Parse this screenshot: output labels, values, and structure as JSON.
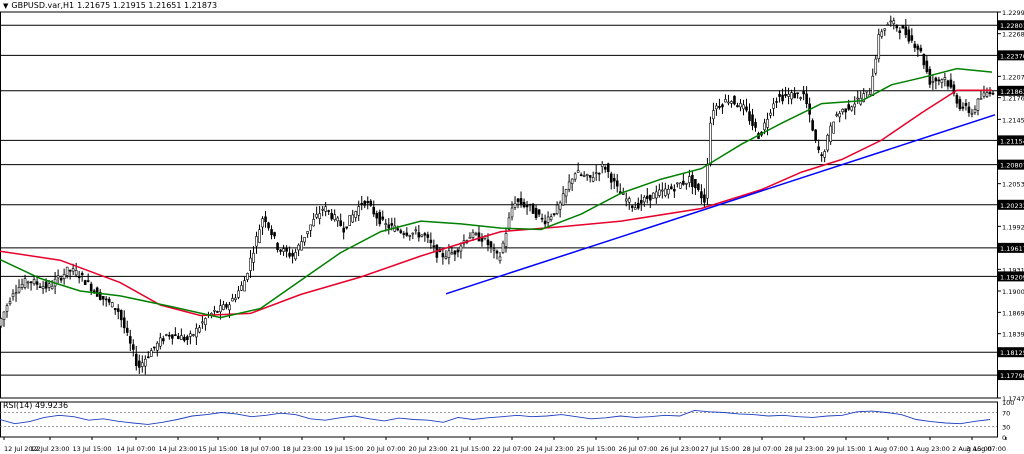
{
  "header": {
    "dropdown_icon": "triangle-down-icon",
    "symbol": "GBPUSD.var,H1",
    "ohlc": "1.21675 1.21915 1.21651 1.21873"
  },
  "rsi_header": {
    "label": "RSI(14) 49.9236"
  },
  "chart_data": [
    {
      "type": "candlestick",
      "symbol": "GBPUSD",
      "timeframe": "H1",
      "x_ticks": [
        "12 Jul 2022",
        "12 Jul 23:00",
        "13 Jul 15:00",
        "14 Jul 07:00",
        "14 Jul 23:00",
        "15 Jul 15:00",
        "18 Jul 07:00",
        "18 Jul 23:00",
        "19 Jul 15:00",
        "20 Jul 07:00",
        "20 Jul 23:00",
        "21 Jul 15:00",
        "22 Jul 07:00",
        "24 Jul 23:00",
        "25 Jul 15:00",
        "26 Jul 07:00",
        "26 Jul 23:00",
        "27 Jul 15:00",
        "28 Jul 07:00",
        "28 Jul 23:00",
        "29 Jul 15:00",
        "1 Aug 07:00",
        "1 Aug 23:00",
        "2 Aug 15:00",
        "3 Aug 07:00"
      ],
      "y_ticks": [
        1.2299,
        1.2268,
        1.2207,
        1.21765,
        1.21455,
        1.20535,
        1.19925,
        1.1931,
        1.19,
        1.18695,
        1.1839,
        1.1747
      ],
      "ylim": [
        1.1747,
        1.2299
      ],
      "levels": [
        1.22801,
        1.2237,
        1.21863,
        1.21154,
        1.20807,
        1.20233,
        1.19617,
        1.19209,
        1.18125,
        1.17798
      ],
      "trendline": {
        "color": "#0000ff",
        "start": {
          "x": "20 Jul 23:00",
          "y": 1.1896
        },
        "end": {
          "x": "3 Aug 07:00",
          "y": 1.2152
        }
      },
      "moving_averages": [
        {
          "color": "#e8002a",
          "points": [
            [
              0,
              1.1957
            ],
            [
              60,
              1.1944
            ],
            [
              120,
              1.1912
            ],
            [
              160,
              1.188
            ],
            [
              200,
              1.1865
            ],
            [
              250,
              1.1868
            ],
            [
              300,
              1.1895
            ],
            [
              360,
              1.192
            ],
            [
              420,
              1.195
            ],
            [
              460,
              1.1968
            ],
            [
              500,
              1.1985
            ],
            [
              560,
              1.1992
            ],
            [
              620,
              1.2
            ],
            [
              700,
              1.2018
            ],
            [
              760,
              1.2045
            ],
            [
              800,
              1.207
            ],
            [
              840,
              1.2088
            ],
            [
              880,
              1.2116
            ],
            [
              920,
              1.2155
            ],
            [
              955,
              1.2187
            ],
            [
              990,
              1.2187
            ]
          ]
        },
        {
          "color": "#008000",
          "points": [
            [
              0,
              1.1945
            ],
            [
              40,
              1.1918
            ],
            [
              80,
              1.19
            ],
            [
              120,
              1.1893
            ],
            [
              170,
              1.1878
            ],
            [
              220,
              1.1862
            ],
            [
              260,
              1.1875
            ],
            [
              300,
              1.1915
            ],
            [
              340,
              1.1955
            ],
            [
              380,
              1.1985
            ],
            [
              420,
              1.2
            ],
            [
              460,
              1.1996
            ],
            [
              500,
              1.199
            ],
            [
              540,
              1.1988
            ],
            [
              580,
              1.201
            ],
            [
              620,
              1.204
            ],
            [
              660,
              1.206
            ],
            [
              700,
              1.2075
            ],
            [
              740,
              1.211
            ],
            [
              780,
              1.214
            ],
            [
              820,
              1.2168
            ],
            [
              860,
              1.2172
            ],
            [
              890,
              1.2195
            ],
            [
              920,
              1.2205
            ],
            [
              955,
              1.2218
            ],
            [
              990,
              1.2213
            ]
          ]
        }
      ],
      "price_path": [
        [
          0,
          1.185
        ],
        [
          15,
          1.19
        ],
        [
          30,
          1.1915
        ],
        [
          50,
          1.1905
        ],
        [
          70,
          1.193
        ],
        [
          80,
          1.1925
        ],
        [
          100,
          1.1895
        ],
        [
          120,
          1.1872
        ],
        [
          140,
          1.179
        ],
        [
          150,
          1.181
        ],
        [
          170,
          1.184
        ],
        [
          190,
          1.183
        ],
        [
          210,
          1.1865
        ],
        [
          230,
          1.188
        ],
        [
          245,
          1.191
        ],
        [
          265,
          1.201
        ],
        [
          280,
          1.196
        ],
        [
          295,
          1.195
        ],
        [
          310,
          1.199
        ],
        [
          325,
          1.202
        ],
        [
          345,
          1.199
        ],
        [
          365,
          1.203
        ],
        [
          385,
          1.1995
        ],
        [
          405,
          1.1985
        ],
        [
          425,
          1.198
        ],
        [
          440,
          1.195
        ],
        [
          455,
          1.1955
        ],
        [
          470,
          1.198
        ],
        [
          485,
          1.1975
        ],
        [
          500,
          1.1945
        ],
        [
          515,
          1.203
        ],
        [
          530,
          1.202
        ],
        [
          545,
          1.2
        ],
        [
          560,
          1.202
        ],
        [
          575,
          1.207
        ],
        [
          590,
          1.206
        ],
        [
          605,
          1.208
        ],
        [
          620,
          1.204
        ],
        [
          635,
          1.202
        ],
        [
          650,
          1.2035
        ],
        [
          670,
          1.2045
        ],
        [
          690,
          1.206
        ],
        [
          705,
          1.203
        ],
        [
          712,
          1.216
        ],
        [
          730,
          1.2175
        ],
        [
          745,
          1.216
        ],
        [
          760,
          1.212
        ],
        [
          775,
          1.2175
        ],
        [
          790,
          1.218
        ],
        [
          805,
          1.218
        ],
        [
          815,
          1.2115
        ],
        [
          822,
          1.209
        ],
        [
          835,
          1.215
        ],
        [
          850,
          1.2165
        ],
        [
          870,
          1.2185
        ],
        [
          880,
          1.227
        ],
        [
          890,
          1.2285
        ],
        [
          905,
          1.227
        ],
        [
          920,
          1.2245
        ],
        [
          930,
          1.22
        ],
        [
          945,
          1.2205
        ],
        [
          960,
          1.2165
        ],
        [
          972,
          1.2155
        ],
        [
          980,
          1.2175
        ],
        [
          990,
          1.2187
        ]
      ],
      "rsi": {
        "label": "RSI(14)",
        "value": 49.9236,
        "levels": [
          30,
          70
        ],
        "y_ticks": [
          100,
          70,
          30,
          0
        ],
        "series": [
          50,
          38,
          44,
          56,
          62,
          58,
          48,
          52,
          45,
          40,
          36,
          42,
          50,
          60,
          64,
          70,
          66,
          58,
          62,
          68,
          64,
          52,
          48,
          55,
          60,
          52,
          46,
          54,
          50,
          48,
          42,
          56,
          50,
          55,
          58,
          62,
          58,
          60,
          64,
          58,
          52,
          55,
          60,
          56,
          58,
          62,
          60,
          76,
          72,
          70,
          66,
          64,
          60,
          62,
          58,
          56,
          60,
          62,
          72,
          74,
          70,
          64,
          50,
          44,
          40,
          38,
          45,
          50
        ]
      }
    }
  ]
}
